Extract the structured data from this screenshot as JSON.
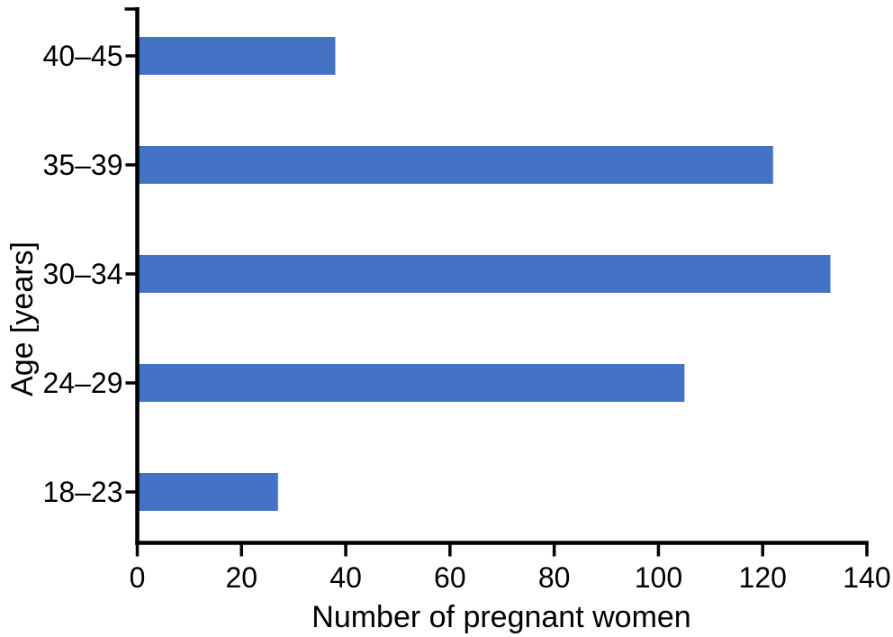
{
  "figure": {
    "background": "#ffffff",
    "text_color": "#000000"
  },
  "chart_data": {
    "type": "bar",
    "orientation": "horizontal",
    "title": "",
    "xlabel": "Number of pregnant women",
    "ylabel": "Age [years]",
    "categories": [
      "18–23",
      "24–29",
      "30–34",
      "35–39",
      "40–45"
    ],
    "categories_order_note": "listed bottom-to-top as plotted",
    "values": [
      27,
      105,
      133,
      122,
      38
    ],
    "xlim": [
      0,
      140
    ],
    "xticks": [
      0,
      20,
      40,
      60,
      80,
      100,
      120,
      140
    ],
    "grid": false,
    "legend": "none",
    "bar_color": "#4472C4",
    "axis_color": "#000000"
  }
}
